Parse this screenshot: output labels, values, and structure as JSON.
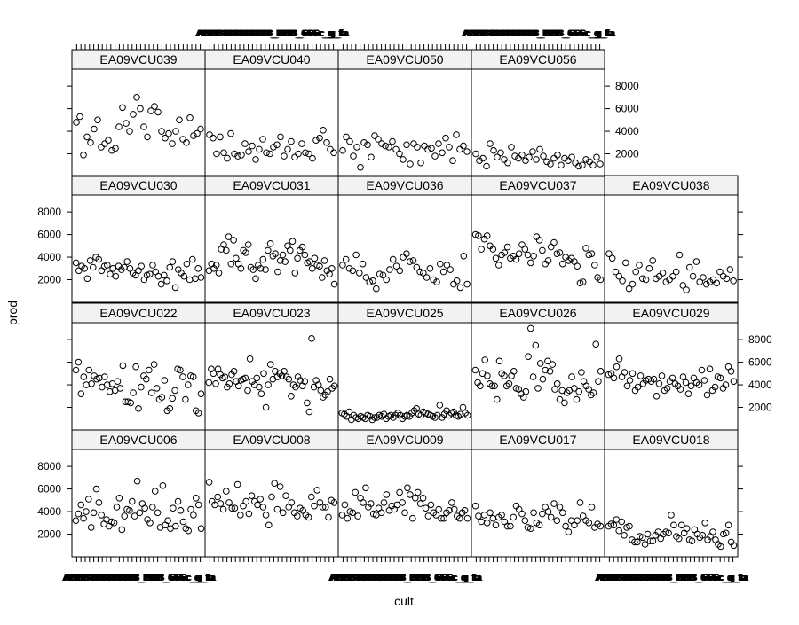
{
  "chart_data": {
    "type": "scatter",
    "xlabel": "cult",
    "ylabel": "prod",
    "ylim": [
      0,
      9500
    ],
    "y_ticks": [
      2000,
      4000,
      6000,
      8000
    ],
    "y_tick_labels": [
      "2000",
      "4000",
      "6000",
      "8000"
    ],
    "x_tick_count": 30,
    "x_tick_label_text": "ABBB888888888_BBB_666c_g_fa",
    "panel_grid": {
      "columns": 5,
      "rows": 4
    },
    "panels": [
      {
        "strip": "EA09VCU006",
        "row": 0,
        "col": 0,
        "y": [
          3200,
          3800,
          4600,
          3400,
          4000,
          5100,
          2600,
          3900,
          6000,
          4800,
          3700,
          2900,
          3300,
          2700,
          3100,
          3000,
          4400,
          5200,
          2400,
          3600,
          4200,
          4100,
          4900,
          3600,
          6700,
          3900,
          4700,
          4300,
          3300,
          3000,
          4400,
          5800,
          3900,
          2600,
          6300,
          2800,
          3200,
          2500,
          4300,
          2700,
          4900,
          4100,
          3100,
          2500,
          2300,
          4200,
          3700,
          5200,
          4600,
          2500
        ]
      },
      {
        "strip": "EA09VCU008",
        "row": 0,
        "col": 1,
        "y": [
          6600,
          4900,
          4600,
          5300,
          4700,
          4200,
          5800,
          4800,
          4300,
          4300,
          6400,
          3700,
          4500,
          4900,
          3800,
          5400,
          4900,
          4600,
          5100,
          4400,
          3700,
          2800,
          5300,
          6500,
          4200,
          6200,
          3900,
          5400,
          4400,
          4800,
          3900,
          3600,
          4300,
          4100,
          3700,
          3500,
          5300,
          4500,
          5900,
          4800,
          4400,
          4400,
          3500,
          5000,
          4800
        ]
      },
      {
        "strip": "EA09VCU009",
        "row": 0,
        "col": 2,
        "y": [
          3700,
          4600,
          3400,
          4000,
          3900,
          5700,
          3600,
          5200,
          4800,
          6100,
          4400,
          4700,
          3800,
          3700,
          4300,
          3900,
          4800,
          5500,
          4100,
          4500,
          4200,
          4600,
          5700,
          4800,
          3900,
          6100,
          5500,
          3400,
          5200,
          5700,
          4700,
          5200,
          4300,
          3600,
          4600,
          3900,
          3700,
          4200,
          3400,
          3400,
          3900,
          4100,
          4800,
          4200,
          3600,
          3400,
          3900,
          4100,
          3400
        ]
      },
      {
        "strip": "EA09VCU017",
        "row": 0,
        "col": 3,
        "y": [
          4500,
          3600,
          3100,
          3700,
          3000,
          3900,
          3400,
          2800,
          3500,
          3700,
          3100,
          2700,
          2700,
          3500,
          4500,
          4200,
          3800,
          3200,
          2600,
          2500,
          3900,
          3000,
          2800,
          3800,
          4400,
          4000,
          3500,
          4700,
          3200,
          4400,
          3900,
          2700,
          2200,
          3200,
          2800,
          3200,
          4800,
          3600,
          3200,
          3000,
          4400,
          2600,
          2900,
          2700
        ]
      },
      {
        "strip": "EA09VCU018",
        "row": 0,
        "col": 4,
        "y": [
          2700,
          2900,
          2800,
          3300,
          2300,
          3100,
          1900,
          2600,
          2700,
          1500,
          1300,
          1300,
          1800,
          1700,
          1100,
          2000,
          1400,
          1400,
          1900,
          2200,
          1600,
          2000,
          2200,
          2100,
          3700,
          2800,
          1800,
          1600,
          2800,
          2100,
          2500,
          1500,
          1400,
          2400,
          2000,
          1700,
          1900,
          3000,
          1500,
          1800,
          2200,
          1500,
          1100,
          900,
          2000,
          2100,
          2800,
          1300,
          1000
        ]
      },
      {
        "strip": "EA09VCU022",
        "row": 1,
        "col": 0,
        "y": [
          5300,
          6000,
          3200,
          4700,
          4000,
          5300,
          4100,
          4800,
          4500,
          4600,
          3800,
          4700,
          4000,
          3400,
          4100,
          3500,
          4300,
          3700,
          5700,
          2500,
          2500,
          2400,
          3300,
          5600,
          1900,
          3800,
          4800,
          4500,
          5300,
          3300,
          5800,
          3700,
          2700,
          2900,
          4400,
          1700,
          1900,
          2800,
          3500,
          5400,
          5300,
          4700,
          2700,
          4000,
          4800,
          4700,
          1700,
          1500,
          3200
        ]
      },
      {
        "strip": "EA09VCU023",
        "row": 1,
        "col": 1,
        "y": [
          4200,
          5400,
          5000,
          4100,
          5400,
          4900,
          4600,
          4700,
          3800,
          4100,
          4900,
          5200,
          4300,
          3900,
          4400,
          4500,
          4600,
          3500,
          6300,
          4300,
          4000,
          4600,
          3800,
          3200,
          5000,
          2000,
          4000,
          5800,
          4500,
          5200,
          4700,
          5000,
          4800,
          5200,
          4700,
          4500,
          3000,
          4000,
          3800,
          4700,
          4400,
          3900,
          4300,
          2400,
          1600,
          8100,
          3800,
          4400,
          4000,
          3500,
          2900,
          3100,
          3400,
          4500,
          3700,
          3900
        ]
      },
      {
        "strip": "EA09VCU025",
        "row": 1,
        "col": 2,
        "y": [
          1500,
          1400,
          1200,
          1600,
          900,
          1300,
          1100,
          1000,
          1200,
          1100,
          1000,
          1300,
          1200,
          900,
          1100,
          1100,
          1300,
          1200,
          1400,
          1000,
          1200,
          1300,
          1100,
          1300,
          1500,
          1300,
          1000,
          1200,
          1300,
          1200,
          1500,
          1700,
          1900,
          1400,
          1300,
          1600,
          1500,
          1400,
          1300,
          1200,
          1100,
          1300,
          2200,
          1100,
          1400,
          1700,
          1300,
          1500,
          1600,
          1300,
          1200,
          1400,
          2000,
          1500,
          1300
        ]
      },
      {
        "strip": "EA09VCU026",
        "row": 1,
        "col": 3,
        "y": [
          5300,
          4200,
          3900,
          5000,
          6200,
          4800,
          4100,
          3900,
          3900,
          2700,
          6100,
          5000,
          4800,
          3900,
          4100,
          4800,
          5200,
          3700,
          3600,
          3200,
          2900,
          3400,
          6500,
          9000,
          4700,
          7500,
          3700,
          5900,
          4500,
          5300,
          6100,
          5200,
          5800,
          3600,
          4100,
          2700,
          3500,
          2400,
          3300,
          3500,
          4700,
          3700,
          2700,
          3400,
          5100,
          4300,
          3900,
          3600,
          3100,
          3300,
          7600,
          4300,
          5200
        ]
      },
      {
        "strip": "EA09VCU029",
        "row": 1,
        "col": 4,
        "y": [
          4900,
          5000,
          4600,
          5600,
          6300,
          4700,
          5100,
          3900,
          4400,
          5000,
          3500,
          3800,
          4800,
          4100,
          4400,
          4500,
          4300,
          4500,
          3000,
          4100,
          4800,
          3500,
          3700,
          4300,
          4600,
          4100,
          3900,
          3600,
          4700,
          4200,
          3200,
          3900,
          4600,
          4200,
          4000,
          5300,
          4400,
          3100,
          5400,
          3500,
          3800,
          4700,
          4600,
          3700,
          4000,
          5600,
          5200,
          4300
        ]
      },
      {
        "strip": "EA09VCU030",
        "row": 2,
        "col": 0,
        "y": [
          3500,
          2800,
          3200,
          3000,
          2100,
          3700,
          3100,
          4000,
          3800,
          2800,
          3200,
          3300,
          2500,
          3000,
          2300,
          3200,
          2900,
          3100,
          3600,
          3000,
          2600,
          2400,
          2800,
          3200,
          2000,
          2400,
          2500,
          3300,
          2700,
          2300,
          1600,
          2400,
          1900,
          3100,
          3600,
          1300,
          2900,
          2600,
          2300,
          3400,
          2000,
          3800,
          2100,
          3000,
          2200
        ]
      },
      {
        "strip": "EA09VCU031",
        "row": 2,
        "col": 1,
        "y": [
          2800,
          3400,
          3000,
          3300,
          2600,
          4700,
          5100,
          4600,
          5800,
          3400,
          5500,
          3900,
          3400,
          3000,
          4600,
          4400,
          5100,
          3100,
          2900,
          2100,
          3300,
          3000,
          3800,
          2900,
          4600,
          5200,
          4100,
          4300,
          2700,
          3700,
          4200,
          3600,
          5000,
          4600,
          5400,
          2600,
          3900,
          4600,
          4900,
          4200,
          3500,
          3600,
          3000,
          3900,
          3300,
          3200,
          2200,
          3700,
          2800,
          2500,
          3000,
          1600
        ]
      },
      {
        "strip": "EA09VCU036",
        "row": 2,
        "col": 2,
        "y": [
          3300,
          3800,
          3000,
          2800,
          4200,
          2600,
          3400,
          2200,
          1800,
          1900,
          1200,
          2500,
          2400,
          2000,
          2900,
          3800,
          3200,
          2800,
          4000,
          4300,
          3600,
          3700,
          3100,
          2700,
          2600,
          2200,
          3000,
          2000,
          1800,
          3400,
          2700,
          3300,
          2900,
          1600,
          1900,
          1300,
          4100,
          1600
        ]
      },
      {
        "strip": "EA09VCU037",
        "row": 2,
        "col": 3,
        "y": [
          6000,
          5900,
          4700,
          5600,
          5900,
          5000,
          4700,
          3900,
          3300,
          4200,
          4400,
          4900,
          3900,
          4100,
          3800,
          4300,
          5100,
          4700,
          4200,
          3500,
          4100,
          5800,
          5500,
          4600,
          3400,
          3700,
          4900,
          5300,
          4300,
          4400,
          3400,
          4000,
          3700,
          3900,
          3600,
          3200,
          1700,
          1800,
          4800,
          4200,
          4300,
          3300,
          2200,
          2000
        ]
      },
      {
        "strip": "EA09VCU038",
        "row": 2,
        "col": 4,
        "y": [
          4300,
          3900,
          2700,
          2300,
          1900,
          3500,
          1200,
          1600,
          2700,
          3300,
          2100,
          2000,
          3000,
          3700,
          2100,
          2300,
          2600,
          1800,
          2000,
          2300,
          2700,
          4200,
          1500,
          1100,
          3100,
          2300,
          3600,
          1800,
          2200,
          1600,
          1800,
          2000,
          1700,
          2700,
          2300,
          2100,
          2900,
          1900
        ]
      },
      {
        "strip": "EA09VCU039",
        "row": 3,
        "col": 0,
        "y": [
          4800,
          5300,
          1900,
          3500,
          3000,
          4200,
          5000,
          2600,
          2900,
          3200,
          2300,
          2500,
          4400,
          6100,
          4700,
          4000,
          5500,
          7000,
          6000,
          4400,
          3500,
          5800,
          6200,
          5700,
          4000,
          3400,
          3800,
          2900,
          4000,
          5000,
          3300,
          3000,
          5200,
          3600,
          3800,
          4200
        ]
      },
      {
        "strip": "EA09VCU040",
        "row": 3,
        "col": 1,
        "y": [
          3700,
          3400,
          2000,
          3500,
          2100,
          1600,
          3800,
          2000,
          1800,
          1900,
          2900,
          2200,
          2700,
          1500,
          2400,
          3300,
          2100,
          2000,
          2600,
          2800,
          3500,
          1800,
          2400,
          3100,
          1700,
          2000,
          2900,
          2100,
          2000,
          1600,
          3200,
          3400,
          4100,
          3000,
          2400,
          2100
        ]
      },
      {
        "strip": "EA09VCU050",
        "row": 3,
        "col": 2,
        "y": [
          2300,
          3500,
          3100,
          1800,
          2600,
          800,
          3000,
          2800,
          1700,
          3600,
          3300,
          2900,
          2700,
          2600,
          3100,
          2400,
          2000,
          1500,
          2800,
          1100,
          2900,
          2600,
          1200,
          2700,
          2400,
          2500,
          1800,
          2900,
          2100,
          3400,
          2600,
          1400,
          3700,
          2400,
          2700,
          2200
        ]
      },
      {
        "strip": "EA09VCU056",
        "row": 3,
        "col": 3,
        "y": [
          2000,
          1400,
          1600,
          900,
          2900,
          2300,
          1700,
          2100,
          1500,
          1200,
          2600,
          1800,
          1600,
          1900,
          1400,
          1700,
          2200,
          1500,
          2400,
          1800,
          1300,
          1100,
          1600,
          1900,
          1000,
          1600,
          1400,
          1700,
          1200,
          900,
          1000,
          1500,
          1300,
          1000,
          1700,
          1100
        ]
      }
    ]
  }
}
